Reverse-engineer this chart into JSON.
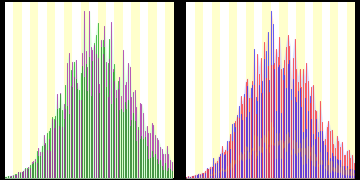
{
  "left_bg_color": "#ffffcc",
  "stripe_color": "#ffffff",
  "n_ages": 100,
  "left_female_color": "#aa22aa",
  "left_male_color": "#22aa22",
  "right_female_color": "#ff3333",
  "right_male_color": "#3333ff",
  "right_extra_color": "#ff9900",
  "left_fill_color": "#ccffcc",
  "right_fill_color": "#ccccff",
  "right_fill_color2": "#ffccaa",
  "outer_bg": "#000000",
  "n_stripes": 20,
  "peak_age": 55,
  "spread": 22
}
